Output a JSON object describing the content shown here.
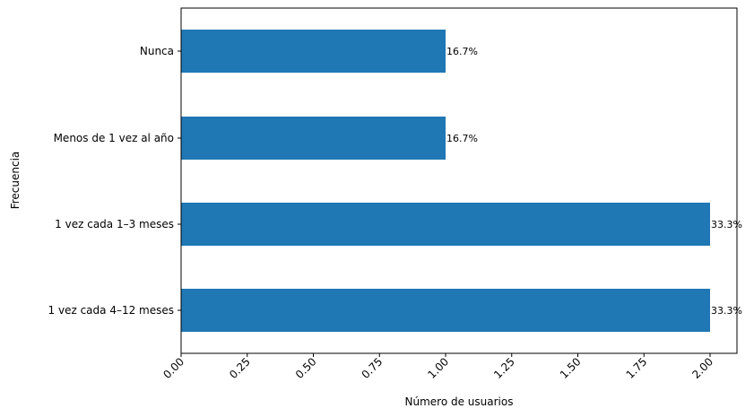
{
  "chart_data": {
    "type": "bar",
    "orientation": "horizontal",
    "categories": [
      "Nunca",
      "Menos de 1 vez al año",
      "1 vez cada 1–3 meses",
      "1 vez cada 4–12 meses"
    ],
    "values": [
      1,
      1,
      2,
      2
    ],
    "data_labels": [
      "16.7%",
      "16.7%",
      "33.3%",
      "33.3%"
    ],
    "xlabel": "Número de usuarios",
    "ylabel": "Frecuencia",
    "xlim": [
      0,
      2.1
    ],
    "xticks": [
      "0.00",
      "0.25",
      "0.50",
      "0.75",
      "1.00",
      "1.25",
      "1.50",
      "1.75",
      "2.00"
    ],
    "grid": false,
    "bar_color": "#1f77b4"
  }
}
